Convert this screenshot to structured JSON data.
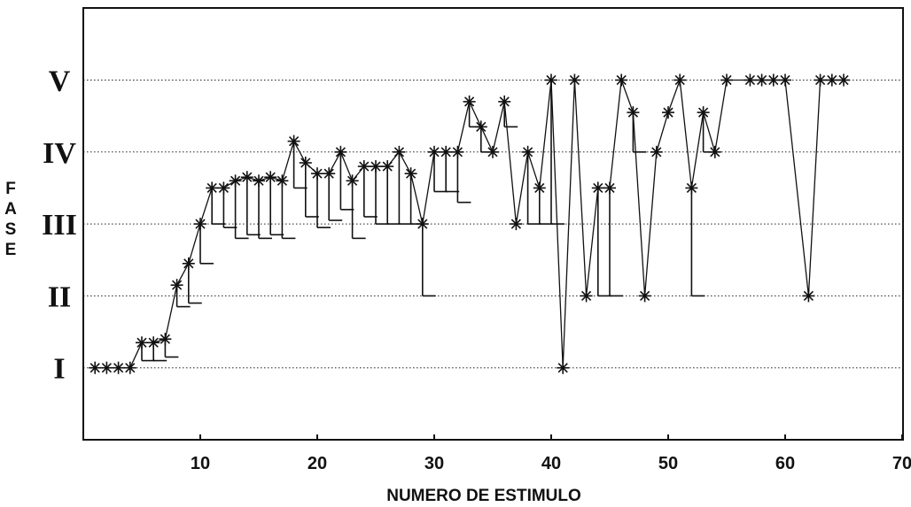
{
  "chart_data": {
    "type": "line",
    "xlabel": "NUMERO DE ESTIMULO",
    "ylabel": "FASE",
    "xlim": [
      0,
      70
    ],
    "ylim": [
      0,
      6
    ],
    "x_ticks": [
      10,
      20,
      30,
      40,
      50,
      60,
      70
    ],
    "y_ticks": [
      {
        "value": 1,
        "label": "I"
      },
      {
        "value": 2,
        "label": "II"
      },
      {
        "value": 3,
        "label": "III"
      },
      {
        "value": 4,
        "label": "IV"
      },
      {
        "value": 5,
        "label": "V"
      }
    ],
    "grid": "horizontal dotted at phase levels",
    "points": [
      {
        "x": 1,
        "y": 1.0
      },
      {
        "x": 2,
        "y": 1.0
      },
      {
        "x": 3,
        "y": 1.0
      },
      {
        "x": 4,
        "y": 1.0
      },
      {
        "x": 5,
        "y": 1.35,
        "lower": 1.1
      },
      {
        "x": 6,
        "y": 1.35,
        "lower": 1.1
      },
      {
        "x": 7,
        "y": 1.4,
        "lower": 1.15
      },
      {
        "x": 8,
        "y": 2.15,
        "lower": 1.85
      },
      {
        "x": 9,
        "y": 2.45,
        "lower": 1.9
      },
      {
        "x": 10,
        "y": 3.0,
        "lower": 2.45
      },
      {
        "x": 11,
        "y": 3.5,
        "lower": 3.0
      },
      {
        "x": 12,
        "y": 3.5,
        "lower": 2.95
      },
      {
        "x": 13,
        "y": 3.6,
        "lower": 2.8
      },
      {
        "x": 14,
        "y": 3.65,
        "lower": 2.85
      },
      {
        "x": 15,
        "y": 3.6,
        "lower": 2.8
      },
      {
        "x": 16,
        "y": 3.65,
        "lower": 2.85
      },
      {
        "x": 17,
        "y": 3.6,
        "lower": 2.8
      },
      {
        "x": 18,
        "y": 4.15,
        "lower": 3.5
      },
      {
        "x": 19,
        "y": 3.85,
        "lower": 3.1
      },
      {
        "x": 20,
        "y": 3.7,
        "lower": 2.95
      },
      {
        "x": 21,
        "y": 3.7,
        "lower": 3.05
      },
      {
        "x": 22,
        "y": 4.0,
        "lower": 3.2
      },
      {
        "x": 23,
        "y": 3.6,
        "lower": 2.8
      },
      {
        "x": 24,
        "y": 3.8,
        "lower": 3.1
      },
      {
        "x": 25,
        "y": 3.8,
        "lower": 3.0
      },
      {
        "x": 26,
        "y": 3.8,
        "lower": 3.0
      },
      {
        "x": 27,
        "y": 4.0,
        "lower": 3.0
      },
      {
        "x": 28,
        "y": 3.7,
        "lower": 3.0
      },
      {
        "x": 29,
        "y": 3.0,
        "lower": 2.0
      },
      {
        "x": 30,
        "y": 4.0,
        "lower": 3.45
      },
      {
        "x": 31,
        "y": 4.0,
        "lower": 3.45
      },
      {
        "x": 32,
        "y": 4.0,
        "lower": 3.3
      },
      {
        "x": 33,
        "y": 4.7,
        "lower": 4.35
      },
      {
        "x": 34,
        "y": 4.35,
        "lower": 4.0
      },
      {
        "x": 35,
        "y": 4.0
      },
      {
        "x": 36,
        "y": 4.7,
        "lower": 4.35
      },
      {
        "x": 37,
        "y": 3.0
      },
      {
        "x": 38,
        "y": 4.0,
        "lower": 3.0
      },
      {
        "x": 39,
        "y": 3.5,
        "lower": 3.0
      },
      {
        "x": 40,
        "y": 5.0,
        "lower": 3.0
      },
      {
        "x": 41,
        "y": 1.0
      },
      {
        "x": 42,
        "y": 5.0
      },
      {
        "x": 43,
        "y": 2.0
      },
      {
        "x": 44,
        "y": 3.5,
        "lower": 2.0
      },
      {
        "x": 45,
        "y": 3.5,
        "lower": 2.0
      },
      {
        "x": 46,
        "y": 5.0
      },
      {
        "x": 47,
        "y": 4.55,
        "lower": 4.0
      },
      {
        "x": 48,
        "y": 2.0
      },
      {
        "x": 49,
        "y": 4.0
      },
      {
        "x": 50,
        "y": 4.55
      },
      {
        "x": 51,
        "y": 5.0
      },
      {
        "x": 52,
        "y": 3.5,
        "lower": 2.0
      },
      {
        "x": 53,
        "y": 4.55,
        "lower": 4.0
      },
      {
        "x": 54,
        "y": 4.0
      },
      {
        "x": 55,
        "y": 5.0
      },
      {
        "x": 57,
        "y": 5.0
      },
      {
        "x": 58,
        "y": 5.0
      },
      {
        "x": 59,
        "y": 5.0
      },
      {
        "x": 60,
        "y": 5.0
      },
      {
        "x": 62,
        "y": 2.0
      },
      {
        "x": 63,
        "y": 5.0
      },
      {
        "x": 64,
        "y": 5.0
      },
      {
        "x": 65,
        "y": 5.0
      }
    ]
  }
}
